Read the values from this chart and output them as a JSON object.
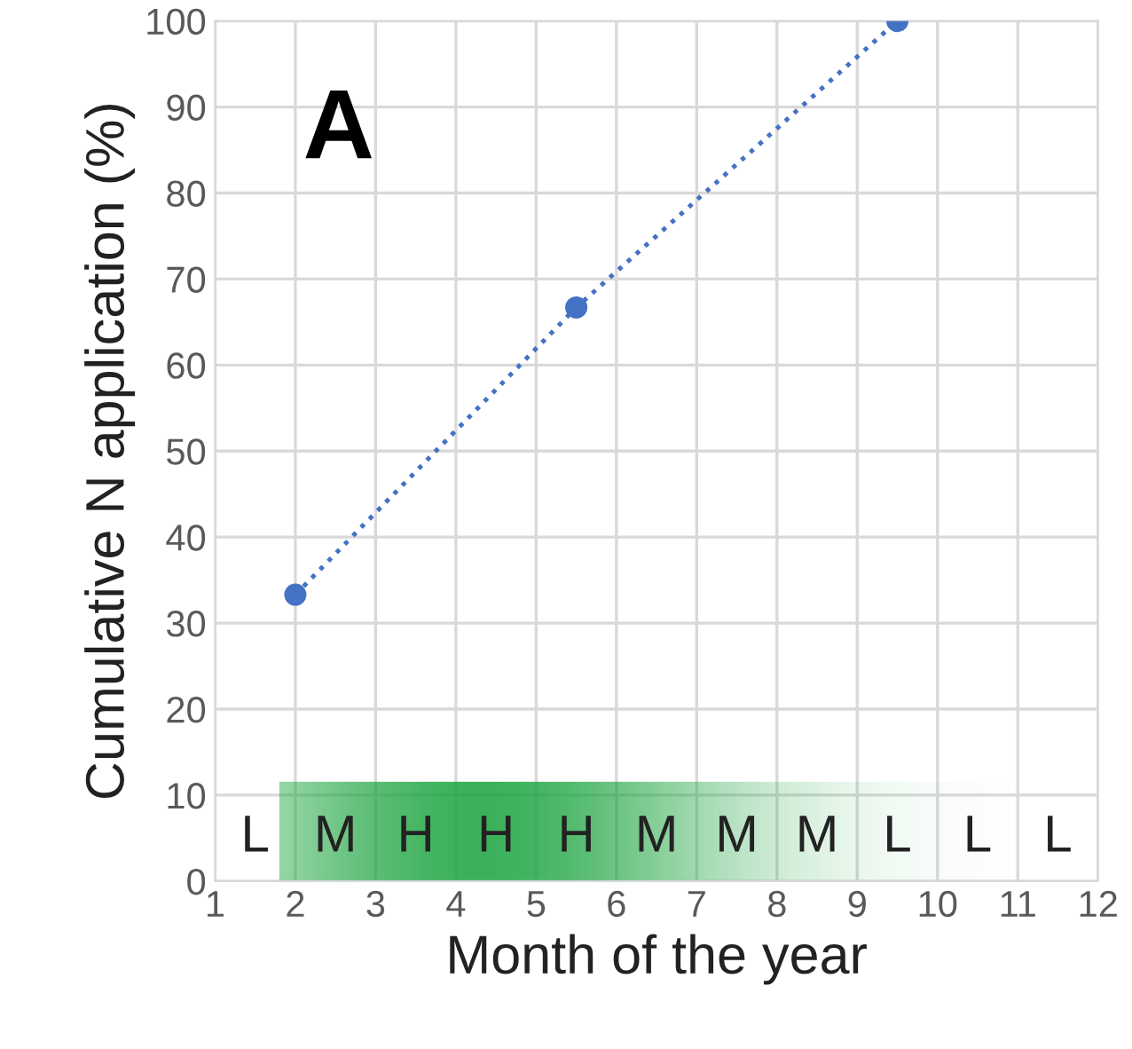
{
  "chart_data": {
    "type": "line",
    "xlabel": "Month of the year",
    "ylabel": "Cumulative N application (%)",
    "series": [
      {
        "color": "#4472c4",
        "x": [
          2,
          5.5,
          9.5
        ],
        "values": [
          33.3,
          66.7,
          100
        ]
      }
    ],
    "xlim": [
      1,
      12
    ],
    "xticks": [
      1,
      2,
      3,
      4,
      5,
      6,
      7,
      8,
      9,
      10,
      11,
      12
    ],
    "ylim": [
      0,
      100
    ],
    "yticks": [
      0,
      10,
      20,
      30,
      40,
      50,
      60,
      70,
      80,
      90,
      100
    ],
    "grid": true,
    "marker": "circle",
    "line_style": "dotted",
    "annotations": [
      "A",
      "L",
      "M",
      "H",
      "H",
      "H",
      "M",
      "M",
      "M",
      "L",
      "L",
      "L"
    ]
  }
}
